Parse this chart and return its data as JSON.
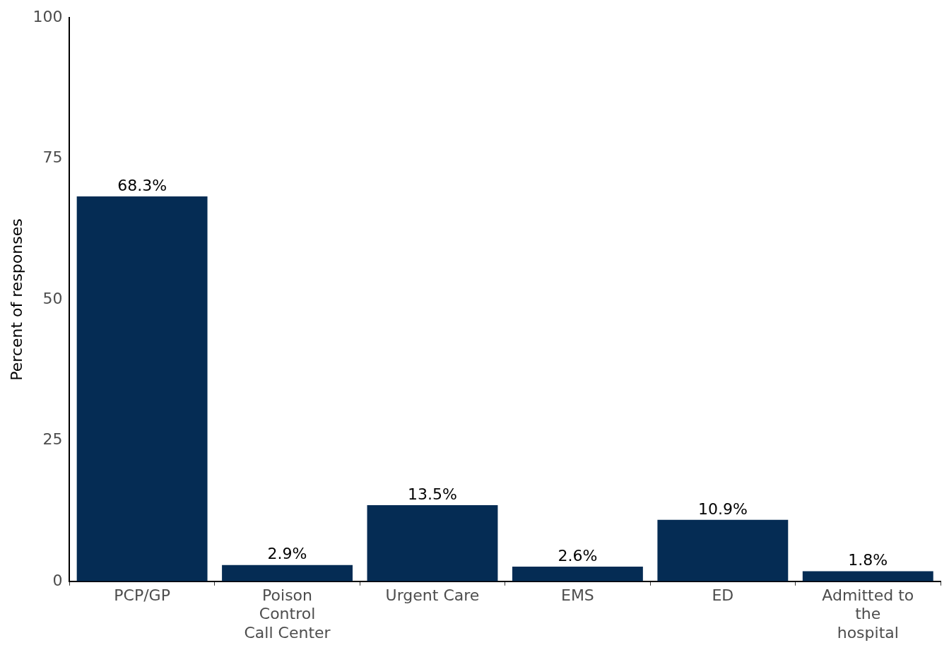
{
  "chart_data": {
    "type": "bar",
    "ylabel": "Percent of responses",
    "categories": [
      "PCP/GP",
      "Poison Control Call Center",
      "Urgent Care",
      "EMS",
      "ED",
      "Admitted to the hospital"
    ],
    "values": [
      68.3,
      2.9,
      13.5,
      2.6,
      10.9,
      1.8
    ],
    "value_labels": [
      "68.3%",
      "2.9%",
      "13.5%",
      "2.6%",
      "10.9%",
      "1.8%"
    ],
    "color": "#052c54",
    "ylim": [
      0,
      100
    ],
    "yticks": [
      0,
      25,
      50,
      75,
      100
    ],
    "grid": false,
    "legend": false
  }
}
